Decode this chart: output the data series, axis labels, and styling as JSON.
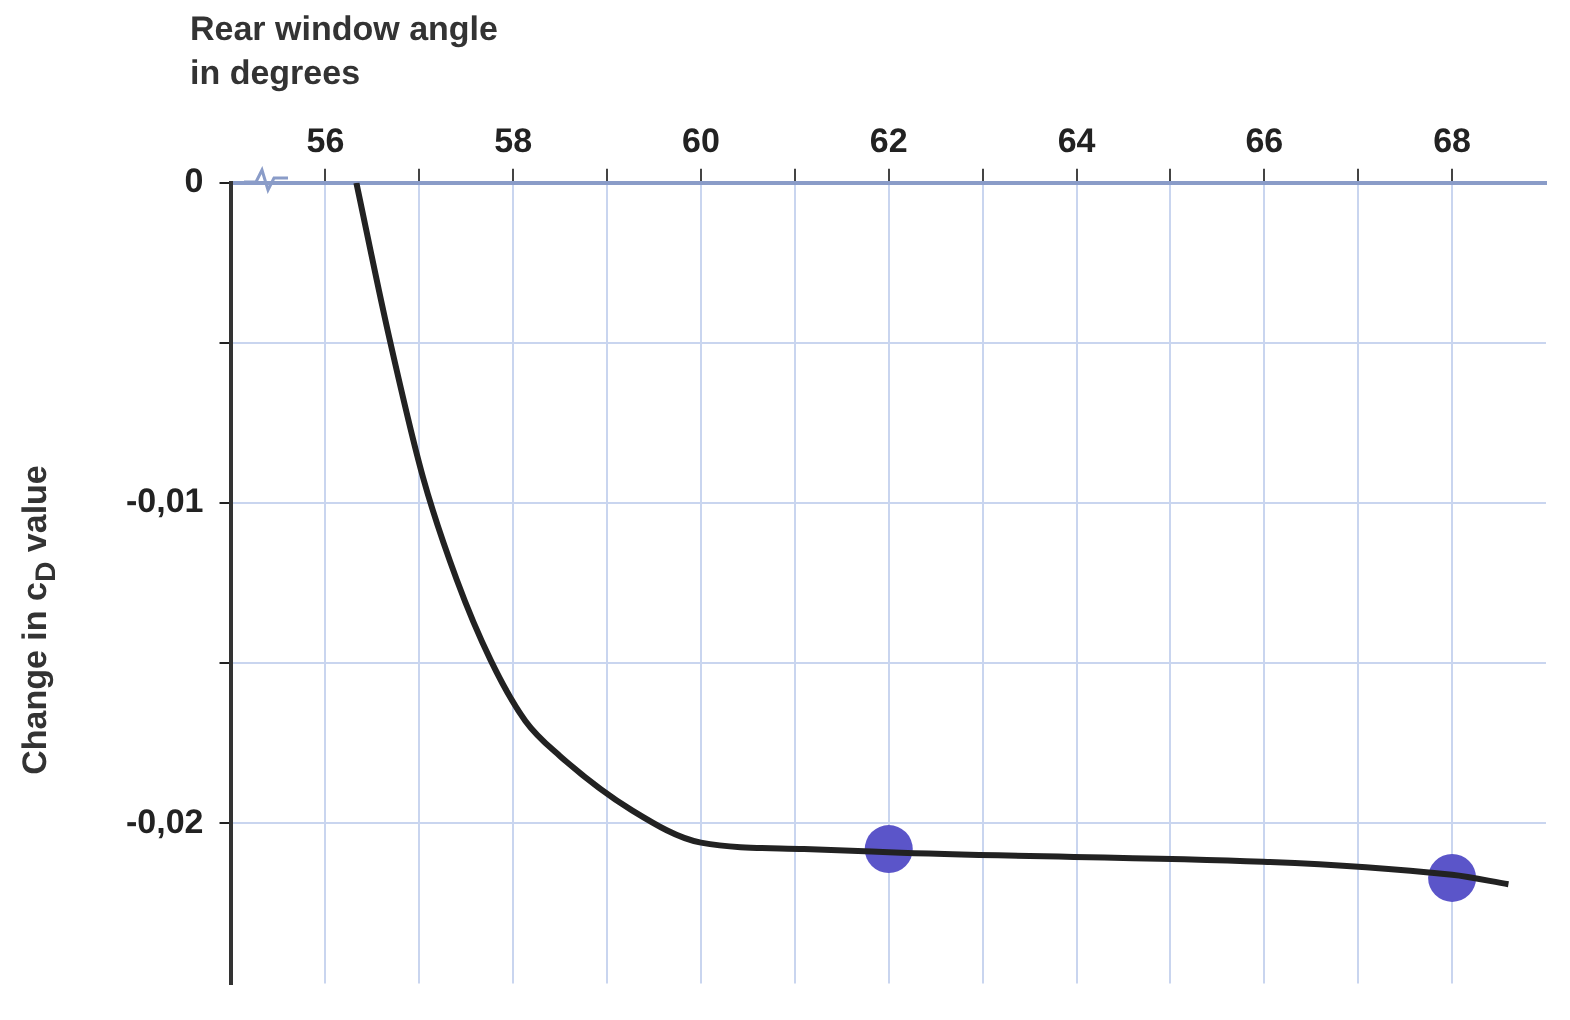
{
  "chart_data": {
    "type": "line",
    "xlabel": "Rear window angle\nin degrees",
    "ylabel": "Change in c$_{D}$ value",
    "xlim": [
      55,
      69
    ],
    "xticks": [
      56,
      {
        "value": 57,
        "label": null
      },
      58,
      {
        "value": 59,
        "label": null
      },
      60,
      {
        "value": 61,
        "label": null
      },
      62,
      {
        "value": 63,
        "label": null
      },
      64,
      {
        "value": 65,
        "label": null
      },
      66,
      {
        "value": 67,
        "label": null
      },
      68
    ],
    "ylim": [
      -0.025,
      0
    ],
    "yticks": [
      {
        "value": 0,
        "label": "0"
      },
      {
        "value": -0.005,
        "label": null
      },
      {
        "value": -0.01,
        "label": "-0,01"
      },
      {
        "value": -0.015,
        "label": null
      },
      {
        "value": -0.02,
        "label": "-0,02"
      }
    ],
    "grid": true,
    "legend": false,
    "series": [
      {
        "color": "#222222",
        "marker": "none",
        "x": [
          56.33,
          56.67,
          57.04,
          57.4,
          57.76,
          58.13,
          58.5,
          59.27,
          60,
          61.1,
          62,
          68,
          68.6
        ],
        "values": [
          0,
          -0.0047,
          -0.0092,
          -0.0124,
          -0.0149,
          -0.0168,
          -0.0179,
          -0.0196,
          -0.0206,
          -0.0208,
          -0.0209,
          -0.0216,
          -0.0219
        ]
      },
      {
        "type": "scatter",
        "color": "#5b55c9",
        "marker": "circle",
        "x": [
          62,
          68
        ],
        "values": [
          -0.0208,
          -0.0217
        ]
      }
    ]
  }
}
